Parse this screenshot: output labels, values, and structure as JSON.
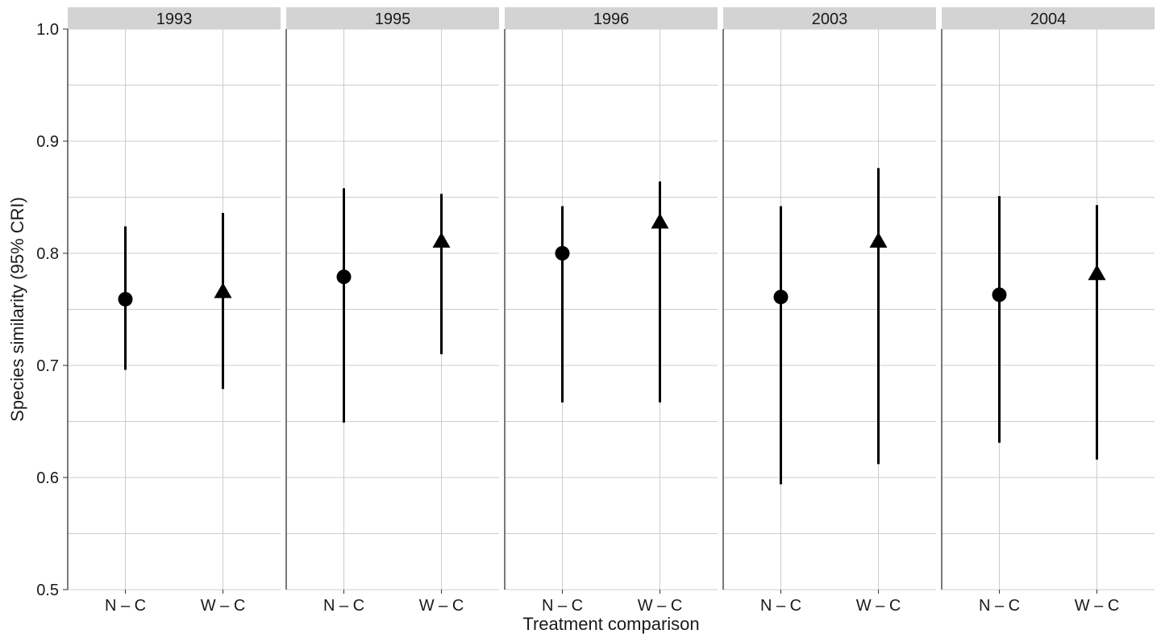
{
  "chart_data": {
    "type": "scatter",
    "xlabel": "Treatment comparison",
    "ylabel": "Species similarity (95% CRI)",
    "ylim": [
      0.5,
      1.0
    ],
    "y_ticks": [
      "0.5",
      "0.6",
      "0.7",
      "0.8",
      "0.9",
      "1.0"
    ],
    "categories": [
      "N – C",
      "W – C"
    ],
    "grid": true,
    "colors": {
      "marker": "#000000",
      "grid": "#cccccc",
      "strip": "#d3d3d3",
      "panel_border": "#333333"
    },
    "panels": [
      {
        "label": "1993",
        "points": [
          {
            "category": "N – C",
            "shape": "circle",
            "value": 0.759,
            "low": 0.696,
            "high": 0.824
          },
          {
            "category": "W – C",
            "shape": "triangle",
            "value": 0.766,
            "low": 0.679,
            "high": 0.836
          }
        ]
      },
      {
        "label": "1995",
        "points": [
          {
            "category": "N – C",
            "shape": "circle",
            "value": 0.779,
            "low": 0.649,
            "high": 0.858
          },
          {
            "category": "W – C",
            "shape": "triangle",
            "value": 0.811,
            "low": 0.71,
            "high": 0.853
          }
        ]
      },
      {
        "label": "1996",
        "points": [
          {
            "category": "N – C",
            "shape": "circle",
            "value": 0.8,
            "low": 0.667,
            "high": 0.842
          },
          {
            "category": "W – C",
            "shape": "triangle",
            "value": 0.828,
            "low": 0.667,
            "high": 0.864
          }
        ]
      },
      {
        "label": "2003",
        "points": [
          {
            "category": "N – C",
            "shape": "circle",
            "value": 0.761,
            "low": 0.594,
            "high": 0.842
          },
          {
            "category": "W – C",
            "shape": "triangle",
            "value": 0.811,
            "low": 0.612,
            "high": 0.876
          }
        ]
      },
      {
        "label": "2004",
        "points": [
          {
            "category": "N – C",
            "shape": "circle",
            "value": 0.763,
            "low": 0.631,
            "high": 0.851
          },
          {
            "category": "W – C",
            "shape": "triangle",
            "value": 0.782,
            "low": 0.616,
            "high": 0.843
          }
        ]
      }
    ]
  }
}
